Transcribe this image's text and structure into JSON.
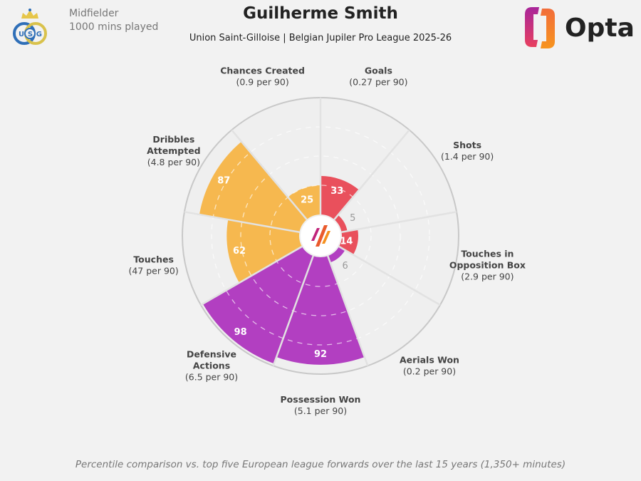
{
  "header": {
    "title": "Guilherme Smith",
    "subtitle": "Union Saint-Gilloise | Belgian Jupiler Pro League 2025-26",
    "position": "Midfielder",
    "minutes": "1000 mins played",
    "club_logo_text": "USG",
    "brand": "Opta"
  },
  "footer": "Percentile comparison vs. top five European league forwards over the last 15 years (1,350+ minutes)",
  "colors": {
    "attacking": "#e9505c",
    "defending": "#b23fc1",
    "possession": "#f6b84f",
    "background": "#f2f2f2",
    "chart_bg": "#efefef"
  },
  "chart_data": {
    "type": "polar-bar",
    "range": [
      0,
      100
    ],
    "gridlines": [
      25,
      50,
      75
    ],
    "categories": [
      "Goals",
      "Shots",
      "Touches in Opposition Box",
      "Aerials Won",
      "Possession Won",
      "Defensive Actions",
      "Touches",
      "Dribbles Attempted",
      "Chances Created"
    ],
    "label_lines": [
      [
        "Goals",
        "(0.27 per 90)"
      ],
      [
        "Shots",
        "(1.4 per 90)"
      ],
      [
        "Touches in",
        "Opposition Box",
        "(2.9 per 90)"
      ],
      [
        "Aerials Won",
        "(0.2 per 90)"
      ],
      [
        "Possession Won",
        "(5.1 per 90)"
      ],
      [
        "Defensive",
        "Actions",
        "(6.5 per 90)"
      ],
      [
        "Touches",
        "(47 per 90)"
      ],
      [
        "Dribbles",
        "Attempted",
        "(4.8 per 90)"
      ],
      [
        "Chances Created",
        "(0.9 per 90)"
      ]
    ],
    "values": [
      33,
      5,
      14,
      6,
      92,
      98,
      62,
      87,
      25
    ],
    "groups": [
      "attacking",
      "attacking",
      "attacking",
      "defending",
      "defending",
      "defending",
      "possession",
      "possession",
      "possession"
    ]
  }
}
